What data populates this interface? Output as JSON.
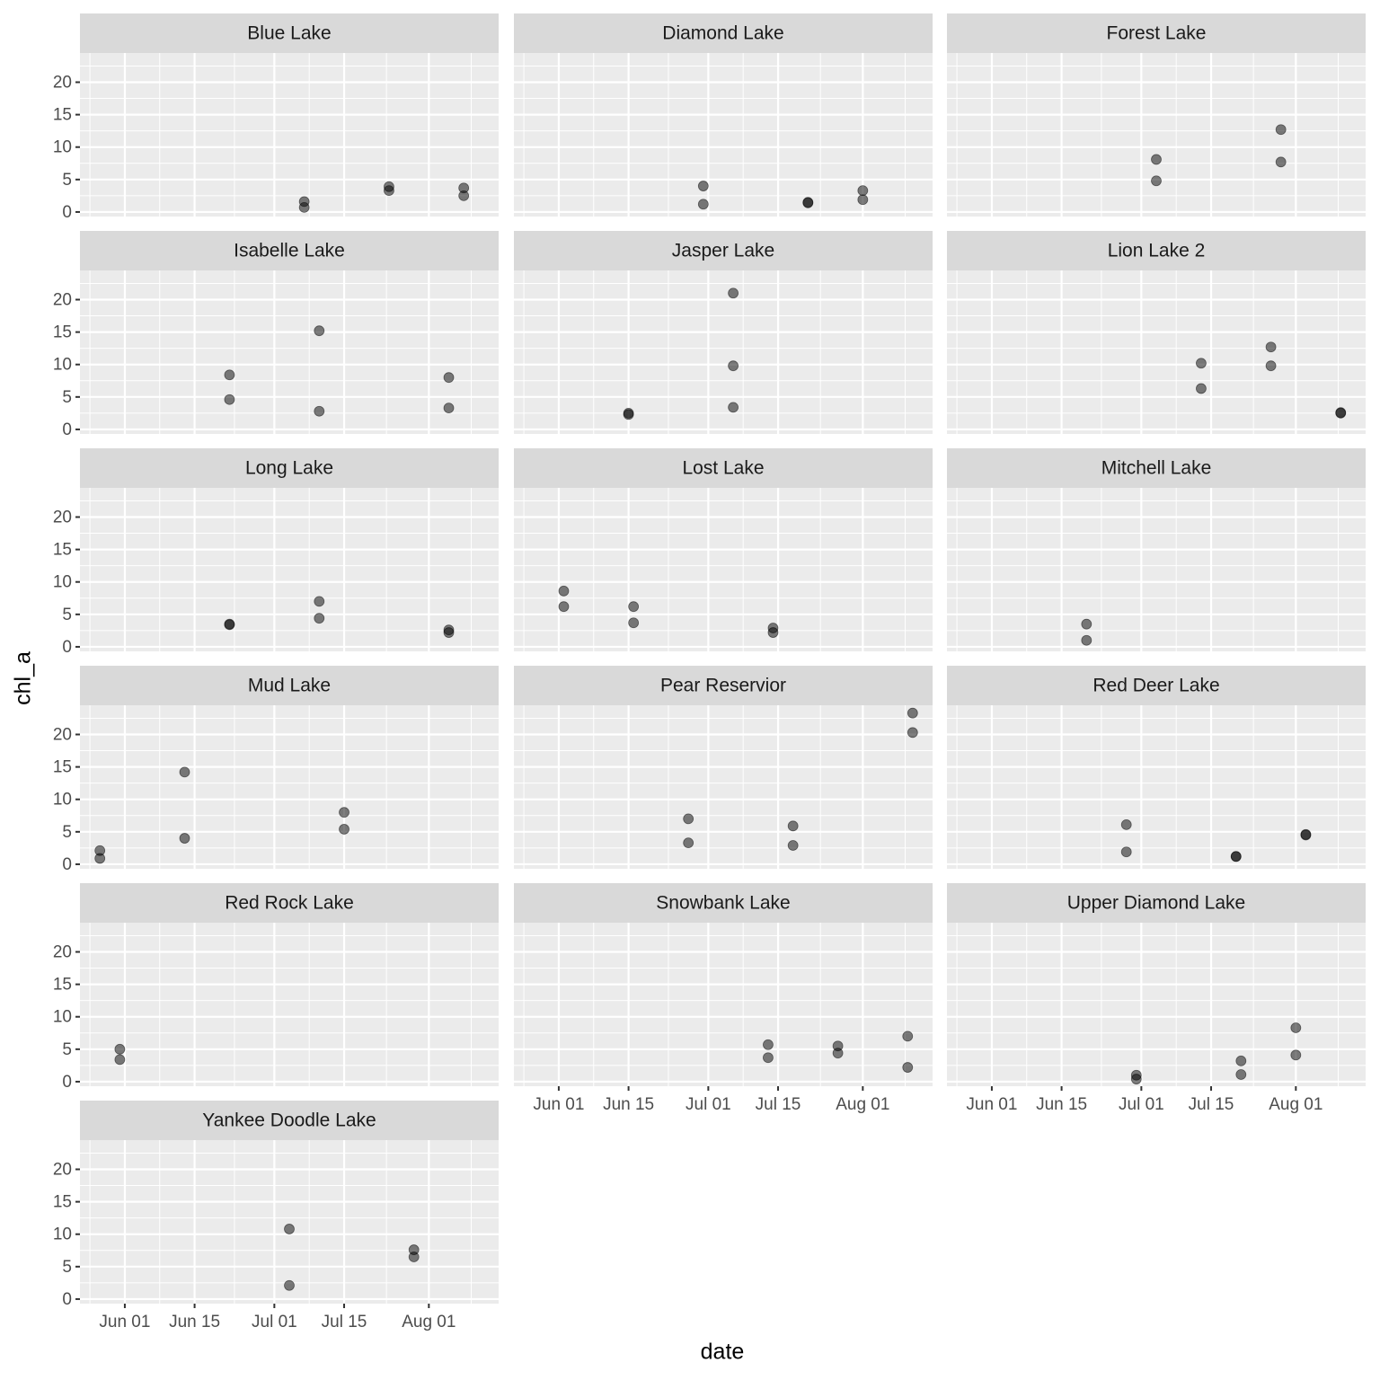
{
  "chart_data": {
    "type": "scatter",
    "xlabel": "date",
    "ylabel": "chl_a",
    "color": "#000000",
    "alpha": 0.5,
    "grid": true,
    "xlim": [
      "May 23",
      "Aug 15"
    ],
    "xticks": [
      "Jun 01",
      "Jun 15",
      "Jul 01",
      "Jul 15",
      "Aug 01"
    ],
    "ylim": [
      -0.7,
      24.5
    ],
    "yticks": [
      0,
      5,
      10,
      15,
      20
    ],
    "facets": [
      {
        "title": "Blue Lake",
        "x": [
          "Jul 07",
          "Jul 07",
          "Jul 24",
          "Jul 24",
          "Aug 08",
          "Aug 08"
        ],
        "values": [
          1.6,
          0.7,
          3.9,
          3.3,
          3.7,
          2.5
        ]
      },
      {
        "title": "Diamond Lake",
        "x": [
          "Jun 30",
          "Jun 30",
          "Jul 21",
          "Jul 21",
          "Aug 01",
          "Aug 01"
        ],
        "values": [
          4.0,
          1.2,
          1.5,
          1.4,
          3.3,
          1.9
        ]
      },
      {
        "title": "Forest Lake",
        "x": [
          "Jul 04",
          "Jul 04",
          "Jul 29",
          "Jul 29"
        ],
        "values": [
          8.1,
          4.8,
          12.7,
          7.7
        ]
      },
      {
        "title": "Isabelle Lake",
        "x": [
          "Jun 22",
          "Jun 22",
          "Jul 10",
          "Jul 10",
          "Aug 05",
          "Aug 05"
        ],
        "values": [
          8.4,
          4.6,
          15.2,
          2.8,
          8.0,
          3.3
        ]
      },
      {
        "title": "Jasper Lake",
        "x": [
          "Jun 15",
          "Jun 15",
          "Jul 06",
          "Jul 06",
          "Jul 06"
        ],
        "values": [
          2.5,
          2.3,
          21.0,
          9.8,
          3.4
        ]
      },
      {
        "title": "Lion Lake 2",
        "x": [
          "Jul 13",
          "Jul 13",
          "Jul 27",
          "Jul 27",
          "Aug 10",
          "Aug 10"
        ],
        "values": [
          10.2,
          6.3,
          12.7,
          9.8,
          2.6,
          2.5
        ]
      },
      {
        "title": "Long Lake",
        "x": [
          "Jun 22",
          "Jun 22",
          "Jul 10",
          "Jul 10",
          "Aug 05",
          "Aug 05"
        ],
        "values": [
          3.5,
          3.4,
          7.0,
          4.4,
          2.6,
          2.2
        ]
      },
      {
        "title": "Lost Lake",
        "x": [
          "Jun 02",
          "Jun 02",
          "Jun 16",
          "Jun 16",
          "Jul 14",
          "Jul 14"
        ],
        "values": [
          8.6,
          6.2,
          6.2,
          3.7,
          2.9,
          2.2
        ]
      },
      {
        "title": "Mitchell Lake",
        "x": [
          "Jun 20",
          "Jun 20"
        ],
        "values": [
          3.5,
          1.0
        ]
      },
      {
        "title": "Mud Lake",
        "x": [
          "May 27",
          "May 27",
          "Jun 13",
          "Jun 13",
          "Jul 15",
          "Jul 15"
        ],
        "values": [
          2.1,
          0.9,
          14.2,
          4.0,
          8.0,
          5.4
        ]
      },
      {
        "title": "Pear Reservior",
        "x": [
          "Jun 27",
          "Jun 27",
          "Jul 18",
          "Jul 18",
          "Aug 11",
          "Aug 11"
        ],
        "values": [
          7.0,
          3.3,
          5.9,
          2.9,
          23.3,
          20.3
        ]
      },
      {
        "title": "Red Deer Lake",
        "x": [
          "Jun 28",
          "Jun 28",
          "Jul 20",
          "Jul 20",
          "Aug 03",
          "Aug 03"
        ],
        "values": [
          6.1,
          1.9,
          1.2,
          1.2,
          4.6,
          4.5
        ]
      },
      {
        "title": "Red Rock Lake",
        "x": [
          "May 31",
          "May 31"
        ],
        "values": [
          5.0,
          3.4
        ]
      },
      {
        "title": "Snowbank Lake",
        "x": [
          "Jul 13",
          "Jul 13",
          "Jul 27",
          "Jul 27",
          "Aug 10",
          "Aug 10"
        ],
        "values": [
          5.7,
          3.7,
          5.5,
          4.4,
          7.0,
          2.2
        ]
      },
      {
        "title": "Upper Diamond Lake",
        "x": [
          "Jun 30",
          "Jun 30",
          "Jul 21",
          "Jul 21",
          "Aug 01",
          "Aug 01"
        ],
        "values": [
          1.0,
          0.4,
          3.2,
          1.1,
          8.3,
          4.1
        ]
      },
      {
        "title": "Yankee Doodle Lake",
        "x": [
          "Jul 04",
          "Jul 04",
          "Jul 29",
          "Jul 29"
        ],
        "values": [
          10.8,
          2.1,
          7.6,
          6.5
        ]
      }
    ]
  }
}
